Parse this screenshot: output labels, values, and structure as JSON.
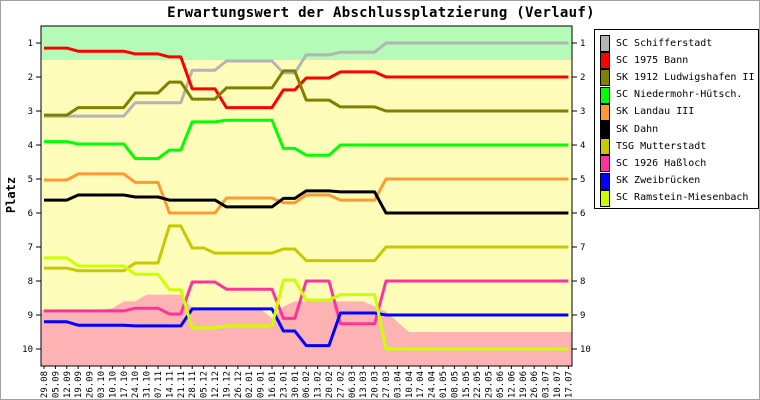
{
  "chart_data": {
    "type": "line",
    "title": "Erwartungswert der Abschlussplatzierung (Verlauf)",
    "xlabel": "",
    "ylabel": "Platz",
    "ylim": [
      1,
      10
    ],
    "y_inverted": true,
    "yticks": [
      "1",
      "2",
      "3",
      "4",
      "5",
      "6",
      "7",
      "8",
      "9",
      "10"
    ],
    "legend_position": "right",
    "background_bands": {
      "top_band_color": "#b3fbb7",
      "mid_color": "#fdfdb9",
      "bottom_area_color": "#fdb3b3",
      "top_band_until": 1.5
    },
    "x": [
      "29.08",
      "05.09",
      "12.09",
      "19.09",
      "26.09",
      "03.10",
      "10.10",
      "17.10",
      "24.10",
      "31.10",
      "07.11",
      "14.11",
      "21.11",
      "28.11",
      "05.12",
      "12.12",
      "19.12",
      "26.12",
      "02.01",
      "09.01",
      "16.01",
      "23.01",
      "30.01",
      "06.02",
      "13.02",
      "20.02",
      "27.02",
      "06.03",
      "13.03",
      "20.03",
      "27.03",
      "03.04",
      "10.04",
      "17.04",
      "24.04",
      "01.05",
      "08.05",
      "15.05",
      "22.05",
      "29.05",
      "05.06",
      "12.06",
      "19.06",
      "26.06",
      "03.07",
      "10.07",
      "17.07"
    ],
    "bottom_area": [
      8.85,
      8.85,
      8.85,
      8.85,
      8.85,
      8.85,
      8.8,
      8.6,
      8.6,
      8.4,
      8.4,
      8.4,
      8.4,
      8.8,
      8.82,
      8.82,
      8.82,
      8.82,
      8.82,
      8.82,
      9.1,
      8.75,
      8.6,
      8.6,
      8.6,
      8.6,
      8.6,
      8.6,
      8.6,
      8.75,
      8.9,
      9.2,
      9.5,
      9.5,
      9.5,
      9.5,
      9.5,
      9.5,
      9.5,
      9.5,
      9.5,
      9.5,
      9.5,
      9.5,
      9.5,
      9.5,
      9.5
    ],
    "series": [
      {
        "name": "SC Schifferstadt",
        "color": "#b4b4b4",
        "values": [
          3.15,
          3.15,
          3.15,
          3.15,
          3.15,
          3.15,
          3.15,
          3.15,
          2.76,
          2.76,
          2.76,
          2.76,
          2.76,
          1.8,
          1.8,
          1.8,
          1.53,
          1.53,
          1.53,
          1.53,
          1.53,
          1.88,
          1.88,
          1.35,
          1.35,
          1.35,
          1.27,
          1.27,
          1.27,
          1.27,
          1,
          1,
          1,
          1,
          1,
          1,
          1,
          1,
          1,
          1,
          1,
          1,
          1,
          1,
          1,
          1,
          1
        ]
      },
      {
        "name": "SC 1975 Bann",
        "color": "#ff0000",
        "values": [
          1.15,
          1.15,
          1.15,
          1.24,
          1.24,
          1.24,
          1.24,
          1.24,
          1.32,
          1.32,
          1.32,
          1.41,
          1.41,
          2.35,
          2.35,
          2.35,
          2.9,
          2.9,
          2.9,
          2.9,
          2.9,
          2.38,
          2.38,
          2.03,
          2.03,
          2.03,
          1.85,
          1.85,
          1.85,
          1.85,
          2,
          2,
          2,
          2,
          2,
          2,
          2,
          2,
          2,
          2,
          2,
          2,
          2,
          2,
          2,
          2,
          2
        ]
      },
      {
        "name": "SK 1912 Ludwigshafen II",
        "color": "#808000",
        "values": [
          3.12,
          3.12,
          3.12,
          2.9,
          2.9,
          2.9,
          2.9,
          2.9,
          2.47,
          2.47,
          2.47,
          2.15,
          2.15,
          2.65,
          2.65,
          2.65,
          2.32,
          2.32,
          2.32,
          2.32,
          2.32,
          1.82,
          1.82,
          2.68,
          2.68,
          2.68,
          2.88,
          2.88,
          2.88,
          2.88,
          3,
          3,
          3,
          3,
          3,
          3,
          3,
          3,
          3,
          3,
          3,
          3,
          3,
          3,
          3,
          3,
          3
        ]
      },
      {
        "name": "SC Niedermohr-Hütsch.",
        "color": "#00ff00",
        "values": [
          3.9,
          3.9,
          3.9,
          3.97,
          3.97,
          3.97,
          3.97,
          3.97,
          4.4,
          4.4,
          4.4,
          4.15,
          4.15,
          3.32,
          3.32,
          3.32,
          3.27,
          3.27,
          3.27,
          3.27,
          3.27,
          4.1,
          4.1,
          4.3,
          4.3,
          4.3,
          4,
          4,
          4,
          4,
          4,
          4,
          4,
          4,
          4,
          4,
          4,
          4,
          4,
          4,
          4,
          4,
          4,
          4,
          4,
          4,
          4
        ]
      },
      {
        "name": "SK Landau III",
        "color": "#ff9933",
        "values": [
          5.03,
          5.03,
          5.03,
          4.85,
          4.85,
          4.85,
          4.85,
          4.85,
          5.1,
          5.1,
          5.1,
          6,
          6,
          6,
          6,
          6,
          5.56,
          5.56,
          5.56,
          5.56,
          5.56,
          5.7,
          5.7,
          5.47,
          5.47,
          5.47,
          5.62,
          5.62,
          5.62,
          5.62,
          5,
          5,
          5,
          5,
          5,
          5,
          5,
          5,
          5,
          5,
          5,
          5,
          5,
          5,
          5,
          5,
          5
        ]
      },
      {
        "name": "SK Dahn",
        "color": "#000000",
        "values": [
          5.62,
          5.62,
          5.62,
          5.47,
          5.47,
          5.47,
          5.47,
          5.47,
          5.53,
          5.53,
          5.53,
          5.62,
          5.62,
          5.62,
          5.62,
          5.62,
          5.82,
          5.82,
          5.82,
          5.82,
          5.82,
          5.57,
          5.57,
          5.35,
          5.35,
          5.35,
          5.38,
          5.38,
          5.38,
          5.38,
          6,
          6,
          6,
          6,
          6,
          6,
          6,
          6,
          6,
          6,
          6,
          6,
          6,
          6,
          6,
          6,
          6
        ]
      },
      {
        "name": "TSG Mutterstadt",
        "color": "#c8c800",
        "values": [
          7.62,
          7.62,
          7.62,
          7.7,
          7.7,
          7.7,
          7.7,
          7.7,
          7.47,
          7.47,
          7.47,
          6.38,
          6.38,
          7.03,
          7.03,
          7.18,
          7.18,
          7.18,
          7.18,
          7.18,
          7.18,
          7.06,
          7.06,
          7.4,
          7.4,
          7.4,
          7.4,
          7.4,
          7.4,
          7.4,
          7,
          7,
          7,
          7,
          7,
          7,
          7,
          7,
          7,
          7,
          7,
          7,
          7,
          7,
          7,
          7,
          7
        ]
      },
      {
        "name": "SC 1926 Haßloch",
        "color": "#ff3399",
        "values": [
          8.88,
          8.88,
          8.88,
          8.88,
          8.88,
          8.88,
          8.88,
          8.88,
          8.8,
          8.8,
          8.8,
          8.97,
          8.97,
          8.03,
          8.03,
          8.03,
          8.24,
          8.24,
          8.24,
          8.24,
          8.24,
          9.1,
          9.1,
          8,
          8,
          8,
          9.26,
          9.26,
          9.26,
          9.26,
          8,
          8,
          8,
          8,
          8,
          8,
          8,
          8,
          8,
          8,
          8,
          8,
          8,
          8,
          8,
          8,
          8
        ]
      },
      {
        "name": "SK Zweibrücken",
        "color": "#0000ff",
        "values": [
          9.2,
          9.2,
          9.2,
          9.3,
          9.3,
          9.3,
          9.3,
          9.3,
          9.32,
          9.32,
          9.32,
          9.32,
          9.32,
          8.82,
          8.82,
          8.82,
          8.82,
          8.82,
          8.82,
          8.82,
          8.82,
          9.47,
          9.47,
          9.9,
          9.9,
          9.9,
          8.94,
          8.94,
          8.94,
          8.94,
          9,
          9,
          9,
          9,
          9,
          9,
          9,
          9,
          9,
          9,
          9,
          9,
          9,
          9,
          9,
          9,
          9
        ]
      },
      {
        "name": "SC Ramstein-Miesenbach",
        "color": "#ccff00",
        "values": [
          7.32,
          7.32,
          7.32,
          7.56,
          7.56,
          7.56,
          7.56,
          7.56,
          7.8,
          7.8,
          7.8,
          8.26,
          8.26,
          9.38,
          9.38,
          9.38,
          9.32,
          9.32,
          9.32,
          9.32,
          9.32,
          7.97,
          7.97,
          8.56,
          8.56,
          8.56,
          8.4,
          8.4,
          8.4,
          8.4,
          10,
          10,
          10,
          10,
          10,
          10,
          10,
          10,
          10,
          10,
          10,
          10,
          10,
          10,
          10,
          10,
          10
        ]
      }
    ]
  }
}
